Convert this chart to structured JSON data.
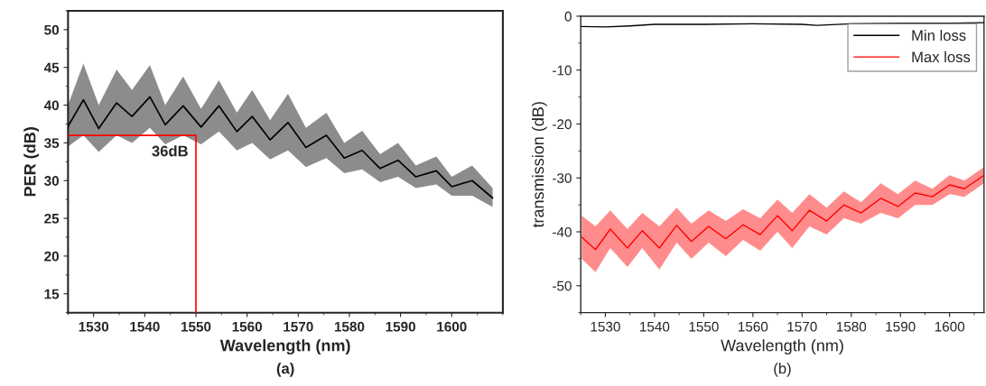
{
  "chart_data": [
    {
      "type": "line",
      "xlabel": "Wavelength (nm)",
      "ylabel": "PER (dB)",
      "xlim": [
        1525,
        1610
      ],
      "ylim": [
        12.5,
        52.5
      ],
      "xticks": [
        1530,
        1540,
        1550,
        1560,
        1570,
        1580,
        1590,
        1600
      ],
      "yticks": [
        15,
        20,
        25,
        30,
        35,
        40,
        45,
        50
      ],
      "grid": false,
      "legend": false,
      "series": [
        {
          "color": "#000000",
          "x": [
            1525,
            1528,
            1531,
            1534.5,
            1537.5,
            1541,
            1544,
            1547.5,
            1551,
            1554.5,
            1558,
            1561,
            1564.5,
            1568,
            1571.5,
            1575.5,
            1579,
            1582.5,
            1586,
            1589.5,
            1593,
            1597,
            1600,
            1604,
            1608
          ],
          "values": [
            37.2,
            40.7,
            36.9,
            40.3,
            38.5,
            41.1,
            37.4,
            39.9,
            37.1,
            39.9,
            36.5,
            38.5,
            35.4,
            37.7,
            34.4,
            36,
            33,
            34,
            31.6,
            32.7,
            30.5,
            31.3,
            29.2,
            30,
            27.7
          ],
          "upper": [
            40,
            45.5,
            40,
            44.7,
            42,
            45.3,
            40,
            43.8,
            39.5,
            43.3,
            39,
            42,
            38,
            41.5,
            37,
            39,
            35,
            36.6,
            33.5,
            35,
            32,
            33.2,
            30.5,
            32,
            29
          ],
          "lower": [
            34.5,
            36,
            33.8,
            36,
            35,
            37,
            34.8,
            36,
            34.8,
            36.5,
            34,
            35,
            32.8,
            34,
            31.8,
            33,
            31,
            31.5,
            29.8,
            30.5,
            29,
            29.5,
            28,
            28,
            26.5
          ]
        },
        {
          "color": "#ff0000",
          "x": [
            1525,
            1550,
            1550
          ],
          "values": [
            36,
            36,
            12.5
          ]
        }
      ],
      "annotations": [
        {
          "text": "36dB",
          "x": 1550,
          "y": 36
        },
        "(a)"
      ]
    },
    {
      "type": "line",
      "xlabel": "Wavelength (nm)",
      "ylabel": "transmission (dB)",
      "xlim": [
        1525,
        1607
      ],
      "ylim": [
        -55,
        0
      ],
      "xticks": [
        1530,
        1540,
        1550,
        1560,
        1570,
        1580,
        1590,
        1600
      ],
      "yticks": [
        0,
        {
          "value": -10,
          "label": "-10"
        },
        {
          "value": -20,
          "label": "-20"
        },
        {
          "value": -30,
          "label": "-30"
        },
        {
          "value": -40,
          "label": "-40"
        },
        {
          "value": -50,
          "label": "-50"
        }
      ],
      "grid": false,
      "legend": "top right",
      "series": [
        {
          "name": "Min loss",
          "color": "#000000",
          "x": [
            1525,
            1530,
            1535,
            1540,
            1550,
            1560,
            1570,
            1573,
            1580,
            1590,
            1600,
            1607
          ],
          "values": [
            -1.9,
            -2,
            -1.8,
            -1.5,
            -1.5,
            -1.4,
            -1.5,
            -1.7,
            -1.4,
            -1.3,
            -1.3,
            -1.2
          ]
        },
        {
          "name": "Max loss",
          "color": "#ff0000",
          "x": [
            1525.2,
            1528,
            1531,
            1534.5,
            1537.5,
            1541,
            1544.5,
            1547.5,
            1551,
            1554.5,
            1558,
            1561.5,
            1565,
            1568,
            1571.5,
            1575,
            1578.5,
            1582,
            1586,
            1589.5,
            1593,
            1596.5,
            1600,
            1603,
            1607
          ],
          "values": [
            -41,
            -43.3,
            -39.5,
            -43,
            -39.8,
            -43,
            -38.8,
            -41.8,
            -39,
            -41.3,
            -38.7,
            -40.5,
            -37,
            -39.8,
            -36,
            -38,
            -35,
            -36.5,
            -33.8,
            -35.3,
            -32.8,
            -33.5,
            -31.3,
            -32,
            -29.5
          ],
          "upper": [
            -37,
            -39,
            -36,
            -39.5,
            -36.5,
            -39,
            -35.5,
            -38.5,
            -36,
            -38,
            -35.8,
            -37.5,
            -34,
            -36.5,
            -33,
            -35.5,
            -32.5,
            -34.5,
            -31,
            -33,
            -30.5,
            -32,
            -29.5,
            -30.5,
            -28
          ],
          "lower": [
            -45,
            -47.5,
            -43,
            -46.5,
            -43,
            -47,
            -42,
            -45,
            -42,
            -44.5,
            -41.5,
            -43.5,
            -40,
            -43,
            -39,
            -40.5,
            -37.5,
            -38.5,
            -36.5,
            -37.5,
            -35,
            -35,
            -33,
            -33.5,
            -31
          ]
        }
      ],
      "annotations": [
        "(b)"
      ]
    }
  ]
}
